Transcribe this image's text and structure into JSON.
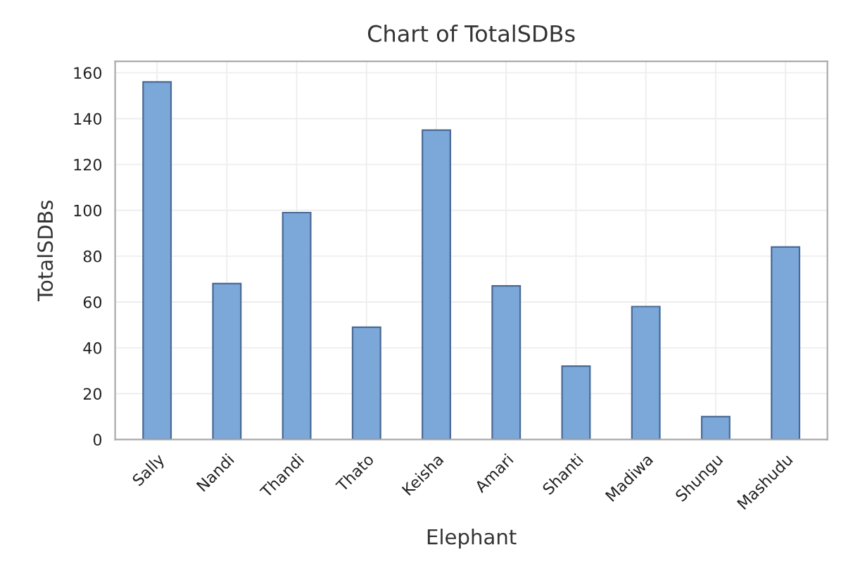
{
  "chart_data": {
    "type": "bar",
    "title": "Chart of TotalSDBs",
    "xlabel": "Elephant",
    "ylabel": "TotalSDBs",
    "categories": [
      "Sally",
      "Nandi",
      "Thandi",
      "Thato",
      "Keisha",
      "Amari",
      "Shanti",
      "Madiwa",
      "Shungu",
      "Mashudu"
    ],
    "values": [
      156,
      68,
      99,
      49,
      135,
      67,
      32,
      58,
      10,
      84
    ],
    "color": "#7ba7d9",
    "ylim": [
      0,
      165
    ],
    "yticks": [
      0,
      20,
      40,
      60,
      80,
      100,
      120,
      140,
      160
    ],
    "grid": true
  }
}
